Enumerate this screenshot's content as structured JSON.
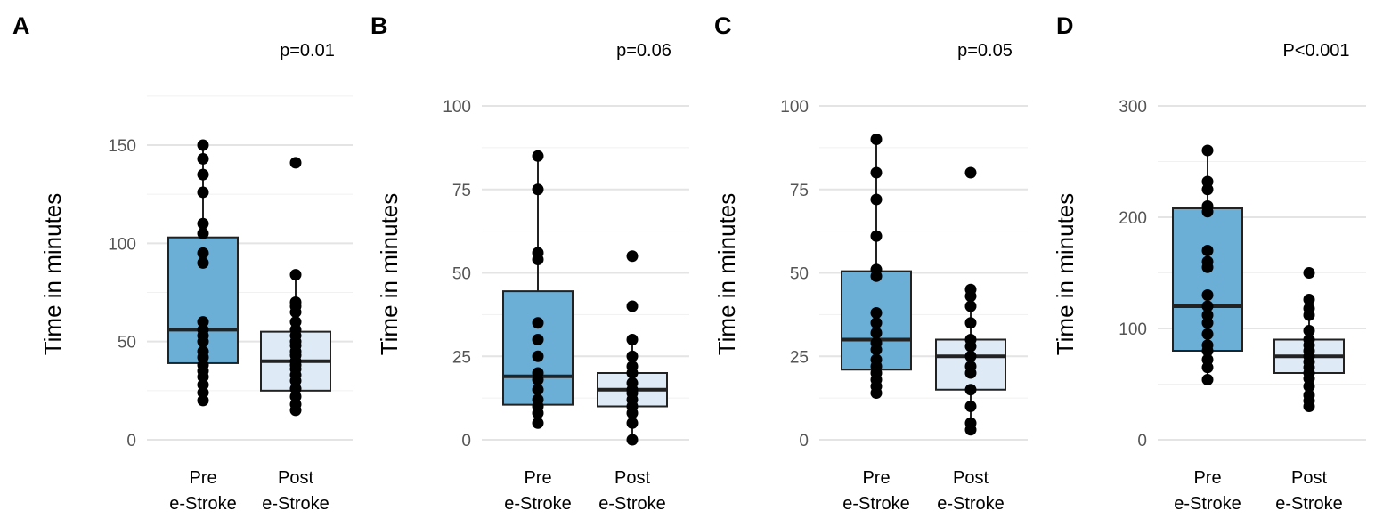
{
  "colors": {
    "pre_box": "#6baed6",
    "post_box": "#deebf7",
    "point": "#000000",
    "grid": "#e4e4e4"
  },
  "chart_data": [
    {
      "type": "box",
      "panel": "A",
      "pvalue": "p=0.01",
      "ylabel": "Time in minutes",
      "ylim": [
        -5,
        175
      ],
      "yticks": [
        0,
        50,
        100,
        150
      ],
      "minor_ticks": [
        25,
        75,
        125
      ],
      "categories": [
        "Pre\ne-Stroke",
        "Post\ne-Stroke"
      ],
      "groups": [
        {
          "name": "Pre e-Stroke",
          "q1": 39,
          "median": 56,
          "q3": 103,
          "whisker_low": 20,
          "whisker_high": 150,
          "points": [
            20,
            24,
            28,
            32,
            35,
            38,
            42,
            45,
            50,
            53,
            56,
            60,
            90,
            95,
            105,
            110,
            126,
            135,
            143,
            150
          ]
        },
        {
          "name": "Post e-Stroke",
          "q1": 25,
          "median": 40,
          "q3": 55,
          "whisker_low": 15,
          "whisker_high": 84,
          "points": [
            15,
            18,
            22,
            26,
            30,
            33,
            36,
            38,
            40,
            43,
            45,
            48,
            50,
            53,
            56,
            60,
            65,
            68,
            70,
            84,
            141
          ]
        }
      ]
    },
    {
      "type": "box",
      "panel": "B",
      "pvalue": "p=0.06",
      "ylabel": "Time in minutes",
      "ylim": [
        -2,
        100
      ],
      "yticks": [
        0,
        25,
        50,
        75,
        100
      ],
      "minor_ticks": [
        12.5,
        37.5,
        62.5,
        87.5
      ],
      "categories": [
        "Pre\ne-Stroke",
        "Post\ne-Stroke"
      ],
      "groups": [
        {
          "name": "Pre e-Stroke",
          "q1": 10.5,
          "median": 19,
          "q3": 44.5,
          "whisker_low": 5,
          "whisker_high": 85,
          "points": [
            5,
            8,
            10,
            12,
            15,
            18,
            20,
            25,
            30,
            35,
            54,
            56,
            75,
            85
          ]
        },
        {
          "name": "Post e-Stroke",
          "q1": 10,
          "median": 15,
          "q3": 20,
          "whisker_low": 0,
          "whisker_high": 30,
          "points": [
            0,
            5,
            8,
            10,
            12,
            14,
            15,
            17,
            20,
            22,
            25,
            30,
            40,
            55
          ]
        }
      ]
    },
    {
      "type": "box",
      "panel": "C",
      "pvalue": "p=0.05",
      "ylabel": "Time in minutes",
      "ylim": [
        -2,
        100
      ],
      "yticks": [
        0,
        25,
        50,
        75,
        100
      ],
      "minor_ticks": [
        12.5,
        37.5,
        62.5,
        87.5
      ],
      "categories": [
        "Pre\ne-Stroke",
        "Post\ne-Stroke"
      ],
      "groups": [
        {
          "name": "Pre e-Stroke",
          "q1": 21,
          "median": 30,
          "q3": 50.5,
          "whisker_low": 14,
          "whisker_high": 90,
          "points": [
            14,
            16,
            18,
            20,
            22,
            24,
            27,
            29,
            32,
            35,
            38,
            49,
            51,
            61,
            72,
            80,
            90
          ]
        },
        {
          "name": "Post e-Stroke",
          "q1": 15,
          "median": 25,
          "q3": 30,
          "whisker_low": 3,
          "whisker_high": 45,
          "points": [
            3,
            5,
            10,
            15,
            20,
            22,
            25,
            28,
            30,
            35,
            40,
            43,
            45,
            80
          ]
        }
      ]
    },
    {
      "type": "box",
      "panel": "D",
      "pvalue": "P<0.001",
      "ylabel": "Time in minutes",
      "ylim": [
        -5,
        300
      ],
      "yticks": [
        0,
        100,
        200,
        300
      ],
      "minor_ticks": [
        50,
        150,
        250
      ],
      "categories": [
        "Pre\ne-Stroke",
        "Post\ne-Stroke"
      ],
      "groups": [
        {
          "name": "Pre e-Stroke",
          "q1": 80,
          "median": 120,
          "q3": 208,
          "whisker_low": 54,
          "whisker_high": 260,
          "points": [
            54,
            65,
            72,
            80,
            85,
            95,
            105,
            112,
            120,
            130,
            155,
            160,
            170,
            205,
            210,
            225,
            232,
            260
          ]
        },
        {
          "name": "Post e-Stroke",
          "q1": 60,
          "median": 75,
          "q3": 90,
          "whisker_low": 30,
          "whisker_high": 126,
          "points": [
            30,
            35,
            40,
            48,
            55,
            60,
            65,
            70,
            75,
            80,
            85,
            90,
            98,
            112,
            118,
            126,
            150
          ]
        }
      ]
    }
  ]
}
